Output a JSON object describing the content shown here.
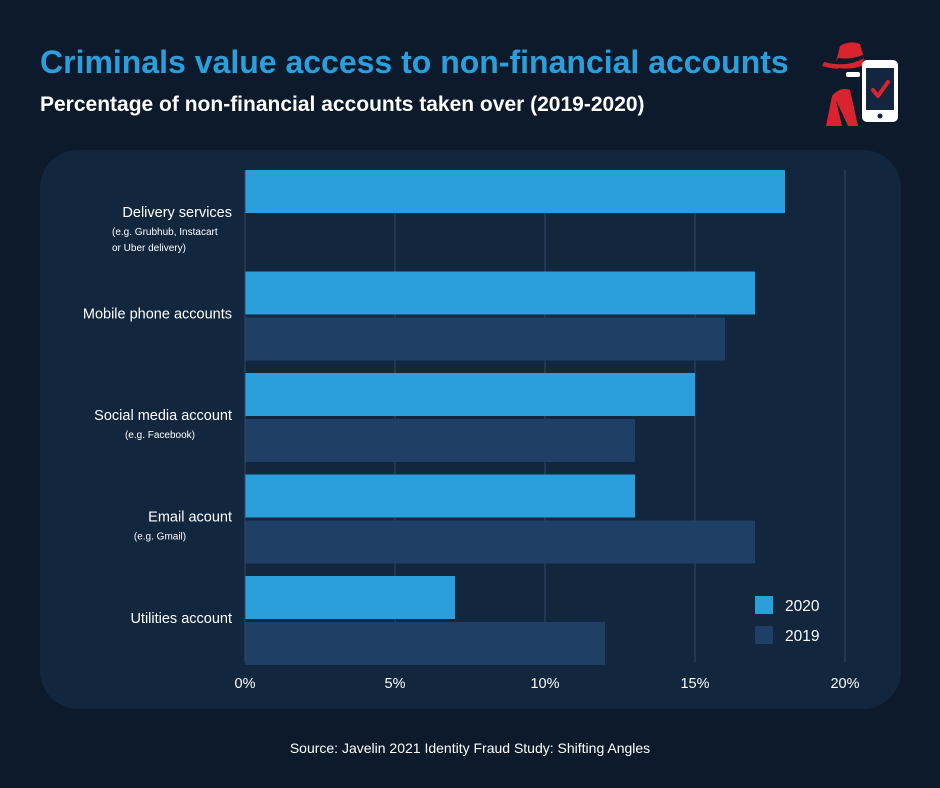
{
  "header": {
    "title": "Criminals value access to non-financial accounts",
    "subtitle": "Percentage of non-financial accounts taken over (2019-2020)"
  },
  "logo": {
    "icon": "hacker-with-phone-icon"
  },
  "footer": {
    "source": "Source: Javelin 2021 Identity Fraud Study: Shifting Angles"
  },
  "colors": {
    "background": "#0c1a2b",
    "panel": "#12263d",
    "series_2020": "#2a9fdc",
    "series_2019": "#1f3f66",
    "title": "#2a9fdc"
  },
  "chart_data": {
    "type": "bar",
    "orientation": "horizontal",
    "categories": [
      "Delivery services",
      "Mobile phone accounts",
      "Social media account",
      "Email acount",
      "Utilities account"
    ],
    "category_notes": [
      [
        "(e.g. Grubhub, Instacart",
        "or Uber delivery)"
      ],
      [],
      [
        "(e.g. Facebook)"
      ],
      [
        "(e.g. Gmail)"
      ],
      []
    ],
    "series": [
      {
        "name": "2020",
        "values": [
          18,
          17,
          15,
          13,
          7
        ],
        "color": "#2a9fdc"
      },
      {
        "name": "2019",
        "values": [
          null,
          16,
          13,
          17,
          12
        ],
        "color": "#1f3f66"
      }
    ],
    "xticks": [
      "0%",
      "5%",
      "10%",
      "15%",
      "20%"
    ],
    "xlim": [
      0,
      20
    ],
    "grid": true,
    "legend_position": "bottom-right"
  }
}
